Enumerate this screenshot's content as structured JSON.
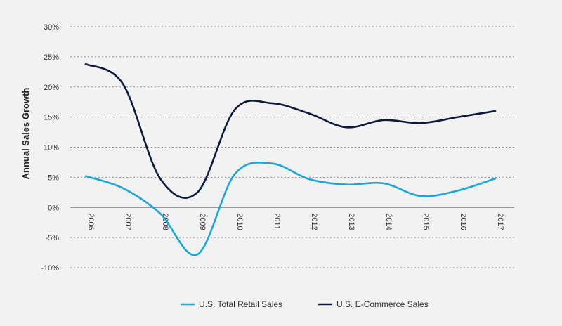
{
  "chart_data": {
    "type": "line",
    "title": "",
    "xlabel": "",
    "ylabel": "Annual Sales Growth",
    "x": [
      "2006",
      "2007",
      "2008",
      "2009",
      "2010",
      "2011",
      "2012",
      "2013",
      "2014",
      "2015",
      "2016",
      "2017"
    ],
    "y_ticks": [
      "30%",
      "25%",
      "20%",
      "15%",
      "10%",
      "5%",
      "0%",
      "-5%",
      "-10%"
    ],
    "ylim": [
      -10,
      30
    ],
    "grid": true,
    "legend_position": "bottom",
    "series": [
      {
        "name": "U.S. Total Retail Sales",
        "color": "#1ba6e0",
        "values": [
          5.2,
          3.2,
          -1.0,
          -7.8,
          5.5,
          7.3,
          4.7,
          3.8,
          4.0,
          1.9,
          2.8,
          4.8
        ]
      },
      {
        "name": "U.S. E-Commerce Sales",
        "color": "#0b1a40",
        "values": [
          23.8,
          20.5,
          4.8,
          2.5,
          16.2,
          17.3,
          15.6,
          13.3,
          14.5,
          14.0,
          15.0,
          16.0
        ]
      }
    ]
  }
}
